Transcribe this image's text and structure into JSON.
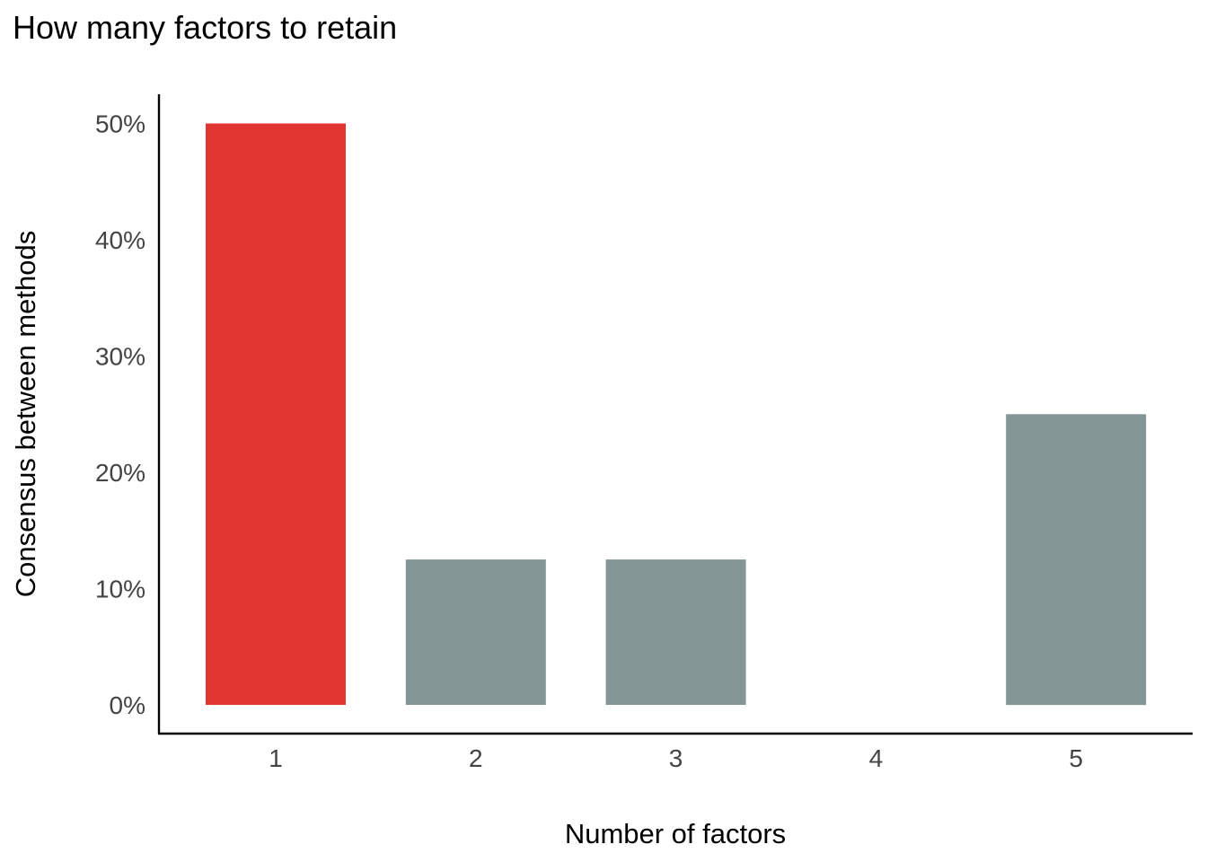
{
  "chart_data": {
    "type": "bar",
    "title": "How many factors to retain",
    "xlabel": "Number of factors",
    "ylabel": "Consensus between methods",
    "categories": [
      "1",
      "2",
      "3",
      "4",
      "5"
    ],
    "values": [
      50,
      12.5,
      12.5,
      0,
      25
    ],
    "value_unit": "%",
    "ylim": [
      0,
      52.4
    ],
    "yticks": [
      0,
      10,
      20,
      30,
      40,
      50
    ],
    "ytick_labels": [
      "0%",
      "10%",
      "20%",
      "30%",
      "40%",
      "50%"
    ],
    "highlight_index": 0,
    "colors": {
      "highlight": "#E03531",
      "default": "#849595",
      "axis": "#000000",
      "tick_text": "#444444"
    },
    "grid": false,
    "legend": "none"
  }
}
